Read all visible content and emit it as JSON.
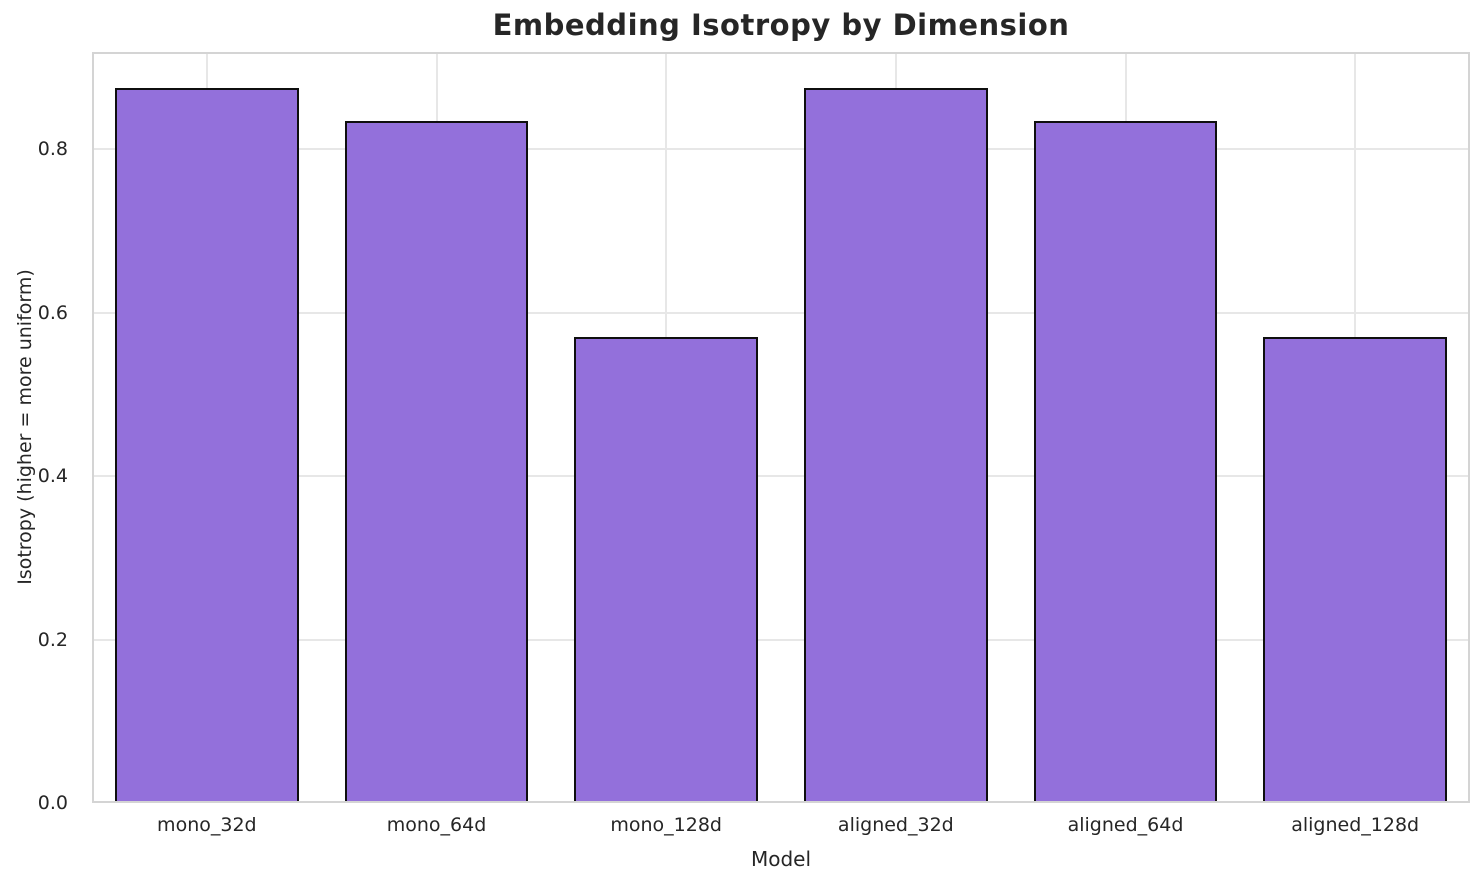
{
  "chart_data": {
    "type": "bar",
    "title": "Embedding Isotropy by Dimension",
    "xlabel": "Model",
    "ylabel": "Isotropy (higher = more uniform)",
    "categories": [
      "mono_32d",
      "mono_64d",
      "mono_128d",
      "aligned_32d",
      "aligned_64d",
      "aligned_128d"
    ],
    "values": [
      0.875,
      0.835,
      0.57,
      0.875,
      0.835,
      0.57
    ],
    "ylim": [
      0,
      0.919
    ],
    "yticks": [
      0,
      0.2,
      0.4,
      0.6,
      0.8
    ],
    "ytick_labels": [
      "0.0",
      "0.2",
      "0.4",
      "0.6",
      "0.8"
    ],
    "grid": true,
    "legend": "none",
    "bar_width_fraction": 0.8,
    "colors": {
      "bar_fill": "#9370DB",
      "bar_edge": "#0f0f0f",
      "grid_line": "#e7e7e7",
      "spine": "#d4d4d4",
      "text": "#262626",
      "background": "#ffffff"
    }
  }
}
